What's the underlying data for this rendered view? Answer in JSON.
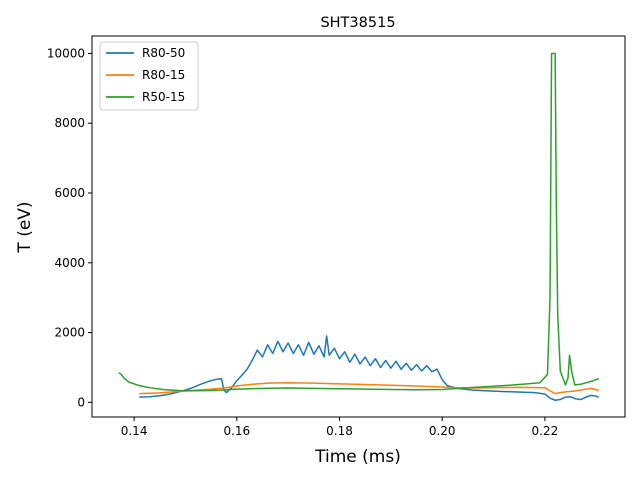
{
  "chart_data": {
    "type": "line",
    "title": "SHT38515",
    "xlabel": "Time (ms)",
    "ylabel": "T (eV)",
    "xlim": [
      0.1318,
      0.2356
    ],
    "ylim": [
      -420,
      10500
    ],
    "xticks": [
      0.14,
      0.16,
      0.18,
      0.2,
      0.22
    ],
    "xtick_labels": [
      "0.14",
      "0.16",
      "0.18",
      "0.20",
      "0.22"
    ],
    "yticks": [
      0,
      2000,
      4000,
      6000,
      8000,
      10000
    ],
    "ytick_labels": [
      "0",
      "2000",
      "4000",
      "6000",
      "8000",
      "10000"
    ],
    "legend_position": "top-left",
    "grid": false,
    "series": [
      {
        "name": "R80-50",
        "color": "#1f77b4",
        "x": [
          0.141,
          0.143,
          0.145,
          0.147,
          0.149,
          0.151,
          0.153,
          0.1545,
          0.156,
          0.157,
          0.1575,
          0.158,
          0.159,
          0.16,
          0.161,
          0.162,
          0.163,
          0.164,
          0.165,
          0.166,
          0.167,
          0.168,
          0.169,
          0.17,
          0.171,
          0.172,
          0.173,
          0.174,
          0.175,
          0.176,
          0.177,
          0.1775,
          0.178,
          0.179,
          0.18,
          0.181,
          0.182,
          0.183,
          0.184,
          0.185,
          0.186,
          0.187,
          0.188,
          0.189,
          0.19,
          0.191,
          0.192,
          0.193,
          0.194,
          0.195,
          0.196,
          0.197,
          0.198,
          0.199,
          0.2,
          0.201,
          0.203,
          0.206,
          0.21,
          0.214,
          0.218,
          0.22,
          0.221,
          0.222,
          0.223,
          0.224,
          0.225,
          0.226,
          0.227,
          0.228,
          0.229,
          0.23,
          0.2305
        ],
        "y": [
          150,
          160,
          190,
          240,
          310,
          400,
          520,
          600,
          660,
          680,
          350,
          280,
          420,
          620,
          780,
          950,
          1200,
          1500,
          1300,
          1650,
          1400,
          1750,
          1450,
          1700,
          1400,
          1650,
          1350,
          1720,
          1380,
          1620,
          1300,
          1900,
          1350,
          1550,
          1250,
          1450,
          1150,
          1380,
          1100,
          1300,
          1050,
          1250,
          1000,
          1200,
          980,
          1180,
          950,
          1120,
          920,
          1080,
          900,
          1050,
          880,
          950,
          650,
          480,
          400,
          350,
          320,
          300,
          280,
          240,
          120,
          60,
          80,
          150,
          160,
          100,
          80,
          150,
          200,
          180,
          140
        ]
      },
      {
        "name": "R80-15",
        "color": "#ff7f0e",
        "x": [
          0.141,
          0.145,
          0.15,
          0.155,
          0.158,
          0.16,
          0.163,
          0.166,
          0.17,
          0.175,
          0.18,
          0.185,
          0.19,
          0.195,
          0.2,
          0.203,
          0.206,
          0.21,
          0.215,
          0.22,
          0.221,
          0.222,
          0.223,
          0.224,
          0.226,
          0.228,
          0.229,
          0.2305
        ],
        "y": [
          250,
          270,
          330,
          380,
          420,
          470,
          520,
          550,
          560,
          550,
          530,
          510,
          490,
          470,
          440,
          420,
          410,
          420,
          430,
          420,
          330,
          250,
          280,
          300,
          330,
          380,
          400,
          340
        ]
      },
      {
        "name": "R50-15",
        "color": "#2ca02c",
        "x": [
          0.137,
          0.1375,
          0.138,
          0.139,
          0.141,
          0.143,
          0.146,
          0.15,
          0.155,
          0.16,
          0.165,
          0.17,
          0.175,
          0.18,
          0.185,
          0.19,
          0.195,
          0.2,
          0.205,
          0.21,
          0.215,
          0.219,
          0.2205,
          0.221,
          0.2213,
          0.2215,
          0.222,
          0.2222,
          0.2225,
          0.223,
          0.224,
          0.2245,
          0.2248,
          0.2252,
          0.2258,
          0.227,
          0.229,
          0.2305
        ],
        "y": [
          850,
          800,
          700,
          580,
          480,
          420,
          360,
          330,
          340,
          380,
          400,
          410,
          400,
          390,
          380,
          370,
          360,
          370,
          420,
          460,
          510,
          560,
          800,
          3000,
          10000,
          10000,
          10000,
          6000,
          2500,
          900,
          500,
          700,
          1350,
          900,
          500,
          520,
          600,
          680
        ]
      }
    ]
  }
}
